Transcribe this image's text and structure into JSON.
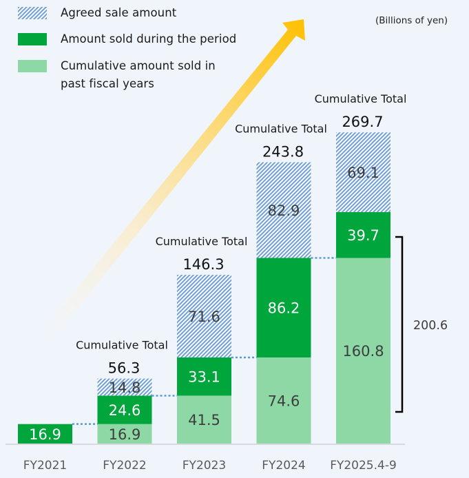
{
  "chart_data": {
    "type": "bar",
    "stacked": true,
    "title": "",
    "unit_label": "(Billions of yen)",
    "xlabel": "",
    "ylabel": "",
    "ylim": [
      0,
      270
    ],
    "grid": false,
    "legend_position": "top-left",
    "categories": [
      "FY2021",
      "FY2022",
      "FY2023",
      "FY2024",
      "FY2025.4-9"
    ],
    "series": [
      {
        "key": "past",
        "name": "Cumulative amount sold in past fiscal years",
        "color": "#8ed8a6",
        "label_color": "#3d3d3d",
        "values": [
          0,
          16.9,
          41.5,
          74.6,
          160.8
        ]
      },
      {
        "key": "sold",
        "name": "Amount sold during the period",
        "color": "#00a53c",
        "label_color": "#ffffff",
        "values": [
          16.9,
          24.6,
          33.1,
          86.2,
          39.7
        ]
      },
      {
        "key": "agreed",
        "name": "Agreed sale amount",
        "color": "#6f9fd8",
        "label_color": "#3d3d3d",
        "pattern": "diagonal-hatch",
        "values": [
          0,
          14.8,
          71.6,
          82.9,
          69.1
        ]
      }
    ],
    "totals": [
      null,
      56.3,
      146.3,
      243.8,
      269.7
    ],
    "total_caption": "Cumulative Total",
    "legend": [
      {
        "key": "agreed",
        "label": "Agreed sale amount"
      },
      {
        "key": "sold",
        "label": "Amount sold during the period"
      },
      {
        "key": "past",
        "label_lines": [
          "Cumulative amount sold in",
          "past fiscal years"
        ]
      }
    ],
    "bracket": {
      "category": "FY2025.4-9",
      "from": 0,
      "to": 200.6,
      "label": "200.6"
    },
    "trend_arrow": {
      "color_start": "#fdf3dc",
      "color_end": "#ffc000",
      "direction": "up-right"
    }
  }
}
